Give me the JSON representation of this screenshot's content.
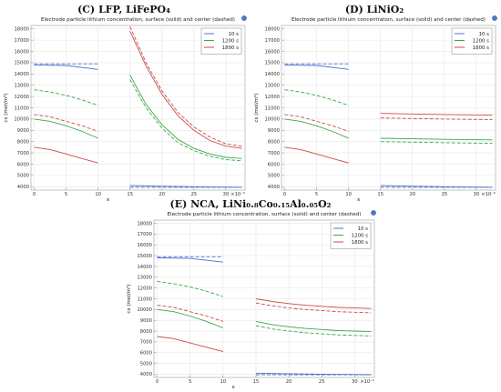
{
  "figure": {
    "panels": [
      {
        "label": "(C) LFP, LiFePO₄"
      },
      {
        "label": "(D) LiNiO₂"
      },
      {
        "label": "(E) NCA, LiNi₀.₈Co₀.₁₅Al₀.₀₅O₂"
      }
    ]
  },
  "chart_data": [
    {
      "type": "line",
      "title": "Electrode particle lithium concentration, surface (solid) and center (dashed)",
      "xlabel": "x",
      "ylabel": "cs (mol/m³)",
      "x_multiplier": "×10⁻⁵",
      "xlim": [
        -0.5,
        33
      ],
      "ylim": [
        3700,
        18300
      ],
      "x_ticks": [
        0,
        5,
        10,
        15,
        20,
        25,
        30
      ],
      "y_ticks": [
        4000,
        5000,
        6000,
        7000,
        8000,
        9000,
        10000,
        11000,
        12000,
        13000,
        14000,
        15000,
        16000,
        17000,
        18000
      ],
      "grid": true,
      "legend_position": "top-right",
      "series": [
        {
          "name": "10 s",
          "color": "#4f6fcf",
          "style": "solid",
          "segments": [
            {
              "x": [
                0,
                5,
                10
              ],
              "y": [
                14800,
                14750,
                14400
              ]
            },
            {
              "x": [
                15,
                20,
                25,
                32.5
              ],
              "y": [
                4100,
                4050,
                4000,
                3950
              ]
            }
          ]
        },
        {
          "name": "",
          "color": "#4f6fcf",
          "style": "dashed",
          "segments": [
            {
              "x": [
                0,
                5,
                10
              ],
              "y": [
                14900,
                14900,
                14900
              ]
            },
            {
              "x": [
                15,
                20,
                25,
                32.5
              ],
              "y": [
                3950,
                3950,
                3950,
                3950
              ]
            }
          ]
        },
        {
          "name": "1200 s",
          "color": "#3aa84a",
          "style": "solid",
          "segments": [
            {
              "x": [
                0,
                2.5,
                5,
                7.5,
                10
              ],
              "y": [
                10000,
                9800,
                9400,
                8900,
                8300
              ]
            },
            {
              "x": [
                15,
                17.5,
                20,
                22.5,
                25,
                27.5,
                30,
                32.5
              ],
              "y": [
                13900,
                11300,
                9500,
                8200,
                7400,
                6900,
                6600,
                6500
              ]
            }
          ]
        },
        {
          "name": "",
          "color": "#3aa84a",
          "style": "dashed",
          "segments": [
            {
              "x": [
                0,
                2.5,
                5,
                7.5,
                10
              ],
              "y": [
                12600,
                12400,
                12100,
                11700,
                11200
              ]
            },
            {
              "x": [
                15,
                17.5,
                20,
                22.5,
                25,
                27.5,
                30,
                32.5
              ],
              "y": [
                13500,
                11000,
                9200,
                7900,
                7200,
                6700,
                6400,
                6300
              ]
            }
          ]
        },
        {
          "name": "1800 s",
          "color": "#cc4a4a",
          "style": "solid",
          "segments": [
            {
              "x": [
                0,
                2.5,
                5,
                7.5,
                10
              ],
              "y": [
                7500,
                7300,
                6900,
                6500,
                6100
              ]
            },
            {
              "x": [
                15,
                17.5,
                20,
                22.5,
                25,
                27.5,
                30,
                32.5
              ],
              "y": [
                17800,
                14700,
                12200,
                10300,
                9000,
                8100,
                7600,
                7400
              ]
            }
          ]
        },
        {
          "name": "",
          "color": "#cc4a4a",
          "style": "dashed",
          "segments": [
            {
              "x": [
                0,
                2.5,
                5,
                7.5,
                10
              ],
              "y": [
                10400,
                10200,
                9800,
                9400,
                8900
              ]
            },
            {
              "x": [
                15,
                17.5,
                20,
                22.5,
                25,
                27.5,
                30,
                32.5
              ],
              "y": [
                18200,
                15000,
                12500,
                10600,
                9300,
                8400,
                7800,
                7600
              ]
            }
          ]
        }
      ]
    },
    {
      "type": "line",
      "title": "Electrode particle lithium concentration, surface (solid) and center (dashed)",
      "xlabel": "x",
      "ylabel": "cs (mol/m³)",
      "x_multiplier": "×10⁻⁵",
      "xlim": [
        -0.5,
        33
      ],
      "ylim": [
        3700,
        18300
      ],
      "x_ticks": [
        0,
        5,
        10,
        15,
        20,
        25,
        30
      ],
      "y_ticks": [
        4000,
        5000,
        6000,
        7000,
        8000,
        9000,
        10000,
        11000,
        12000,
        13000,
        14000,
        15000,
        16000,
        17000,
        18000
      ],
      "grid": true,
      "legend_position": "top-right",
      "series": [
        {
          "name": "10 s",
          "color": "#4f6fcf",
          "style": "solid",
          "segments": [
            {
              "x": [
                0,
                5,
                10
              ],
              "y": [
                14800,
                14750,
                14400
              ]
            },
            {
              "x": [
                15,
                20,
                25,
                32.5
              ],
              "y": [
                4100,
                4050,
                4000,
                3950
              ]
            }
          ]
        },
        {
          "name": "",
          "color": "#4f6fcf",
          "style": "dashed",
          "segments": [
            {
              "x": [
                0,
                5,
                10
              ],
              "y": [
                14900,
                14900,
                14900
              ]
            },
            {
              "x": [
                15,
                20,
                25,
                32.5
              ],
              "y": [
                3950,
                3950,
                3950,
                3950
              ]
            }
          ]
        },
        {
          "name": "1200 s",
          "color": "#3aa84a",
          "style": "solid",
          "segments": [
            {
              "x": [
                0,
                2.5,
                5,
                7.5,
                10
              ],
              "y": [
                10000,
                9800,
                9400,
                8900,
                8300
              ]
            },
            {
              "x": [
                15,
                20,
                25,
                32.5
              ],
              "y": [
                8300,
                8250,
                8200,
                8150
              ]
            }
          ]
        },
        {
          "name": "",
          "color": "#3aa84a",
          "style": "dashed",
          "segments": [
            {
              "x": [
                0,
                2.5,
                5,
                7.5,
                10
              ],
              "y": [
                12600,
                12400,
                12100,
                11700,
                11200
              ]
            },
            {
              "x": [
                15,
                20,
                25,
                32.5
              ],
              "y": [
                8000,
                7950,
                7900,
                7850
              ]
            }
          ]
        },
        {
          "name": "1800 s",
          "color": "#cc4a4a",
          "style": "solid",
          "segments": [
            {
              "x": [
                0,
                2.5,
                5,
                7.5,
                10
              ],
              "y": [
                7500,
                7300,
                6900,
                6500,
                6100
              ]
            },
            {
              "x": [
                15,
                20,
                25,
                32.5
              ],
              "y": [
                10500,
                10450,
                10400,
                10350
              ]
            }
          ]
        },
        {
          "name": "",
          "color": "#cc4a4a",
          "style": "dashed",
          "segments": [
            {
              "x": [
                0,
                2.5,
                5,
                7.5,
                10
              ],
              "y": [
                10400,
                10200,
                9800,
                9400,
                8900
              ]
            },
            {
              "x": [
                15,
                20,
                25,
                32.5
              ],
              "y": [
                10100,
                10050,
                10000,
                9950
              ]
            }
          ]
        }
      ]
    },
    {
      "type": "line",
      "title": "Electrode particle lithium concentration, surface (solid) and center (dashed)",
      "xlabel": "x",
      "ylabel": "cs (mol/m³)",
      "x_multiplier": "×10⁻⁵",
      "xlim": [
        -0.5,
        33
      ],
      "ylim": [
        3700,
        18300
      ],
      "x_ticks": [
        0,
        5,
        10,
        15,
        20,
        25,
        30
      ],
      "y_ticks": [
        4000,
        5000,
        6000,
        7000,
        8000,
        9000,
        10000,
        11000,
        12000,
        13000,
        14000,
        15000,
        16000,
        17000,
        18000
      ],
      "grid": true,
      "legend_position": "top-right",
      "series": [
        {
          "name": "10 s",
          "color": "#4f6fcf",
          "style": "solid",
          "segments": [
            {
              "x": [
                0,
                5,
                10
              ],
              "y": [
                14800,
                14750,
                14400
              ]
            },
            {
              "x": [
                15,
                20,
                25,
                32.5
              ],
              "y": [
                4100,
                4050,
                4000,
                3950
              ]
            }
          ]
        },
        {
          "name": "",
          "color": "#4f6fcf",
          "style": "dashed",
          "segments": [
            {
              "x": [
                0,
                5,
                10
              ],
              "y": [
                14900,
                14900,
                14900
              ]
            },
            {
              "x": [
                15,
                20,
                25,
                32.5
              ],
              "y": [
                3950,
                3950,
                3950,
                3950
              ]
            }
          ]
        },
        {
          "name": "1200 s",
          "color": "#3aa84a",
          "style": "solid",
          "segments": [
            {
              "x": [
                0,
                2.5,
                5,
                7.5,
                10
              ],
              "y": [
                10000,
                9800,
                9400,
                8900,
                8300
              ]
            },
            {
              "x": [
                15,
                17.5,
                20,
                22.5,
                25,
                27.5,
                30,
                32.5
              ],
              "y": [
                8900,
                8600,
                8400,
                8250,
                8150,
                8050,
                8000,
                7950
              ]
            }
          ]
        },
        {
          "name": "",
          "color": "#3aa84a",
          "style": "dashed",
          "segments": [
            {
              "x": [
                0,
                2.5,
                5,
                7.5,
                10
              ],
              "y": [
                12600,
                12400,
                12100,
                11700,
                11200
              ]
            },
            {
              "x": [
                15,
                17.5,
                20,
                22.5,
                25,
                27.5,
                30,
                32.5
              ],
              "y": [
                8500,
                8200,
                8000,
                7850,
                7750,
                7650,
                7600,
                7550
              ]
            }
          ]
        },
        {
          "name": "1800 s",
          "color": "#cc4a4a",
          "style": "solid",
          "segments": [
            {
              "x": [
                0,
                2.5,
                5,
                7.5,
                10
              ],
              "y": [
                7500,
                7300,
                6900,
                6500,
                6100
              ]
            },
            {
              "x": [
                15,
                17.5,
                20,
                22.5,
                25,
                27.5,
                30,
                32.5
              ],
              "y": [
                11000,
                10750,
                10550,
                10400,
                10300,
                10200,
                10150,
                10100
              ]
            }
          ]
        },
        {
          "name": "",
          "color": "#cc4a4a",
          "style": "dashed",
          "segments": [
            {
              "x": [
                0,
                2.5,
                5,
                7.5,
                10
              ],
              "y": [
                10400,
                10200,
                9800,
                9400,
                8900
              ]
            },
            {
              "x": [
                15,
                17.5,
                20,
                22.5,
                25,
                27.5,
                30,
                32.5
              ],
              "y": [
                10600,
                10350,
                10150,
                10000,
                9900,
                9800,
                9750,
                9700
              ]
            }
          ]
        }
      ]
    }
  ]
}
